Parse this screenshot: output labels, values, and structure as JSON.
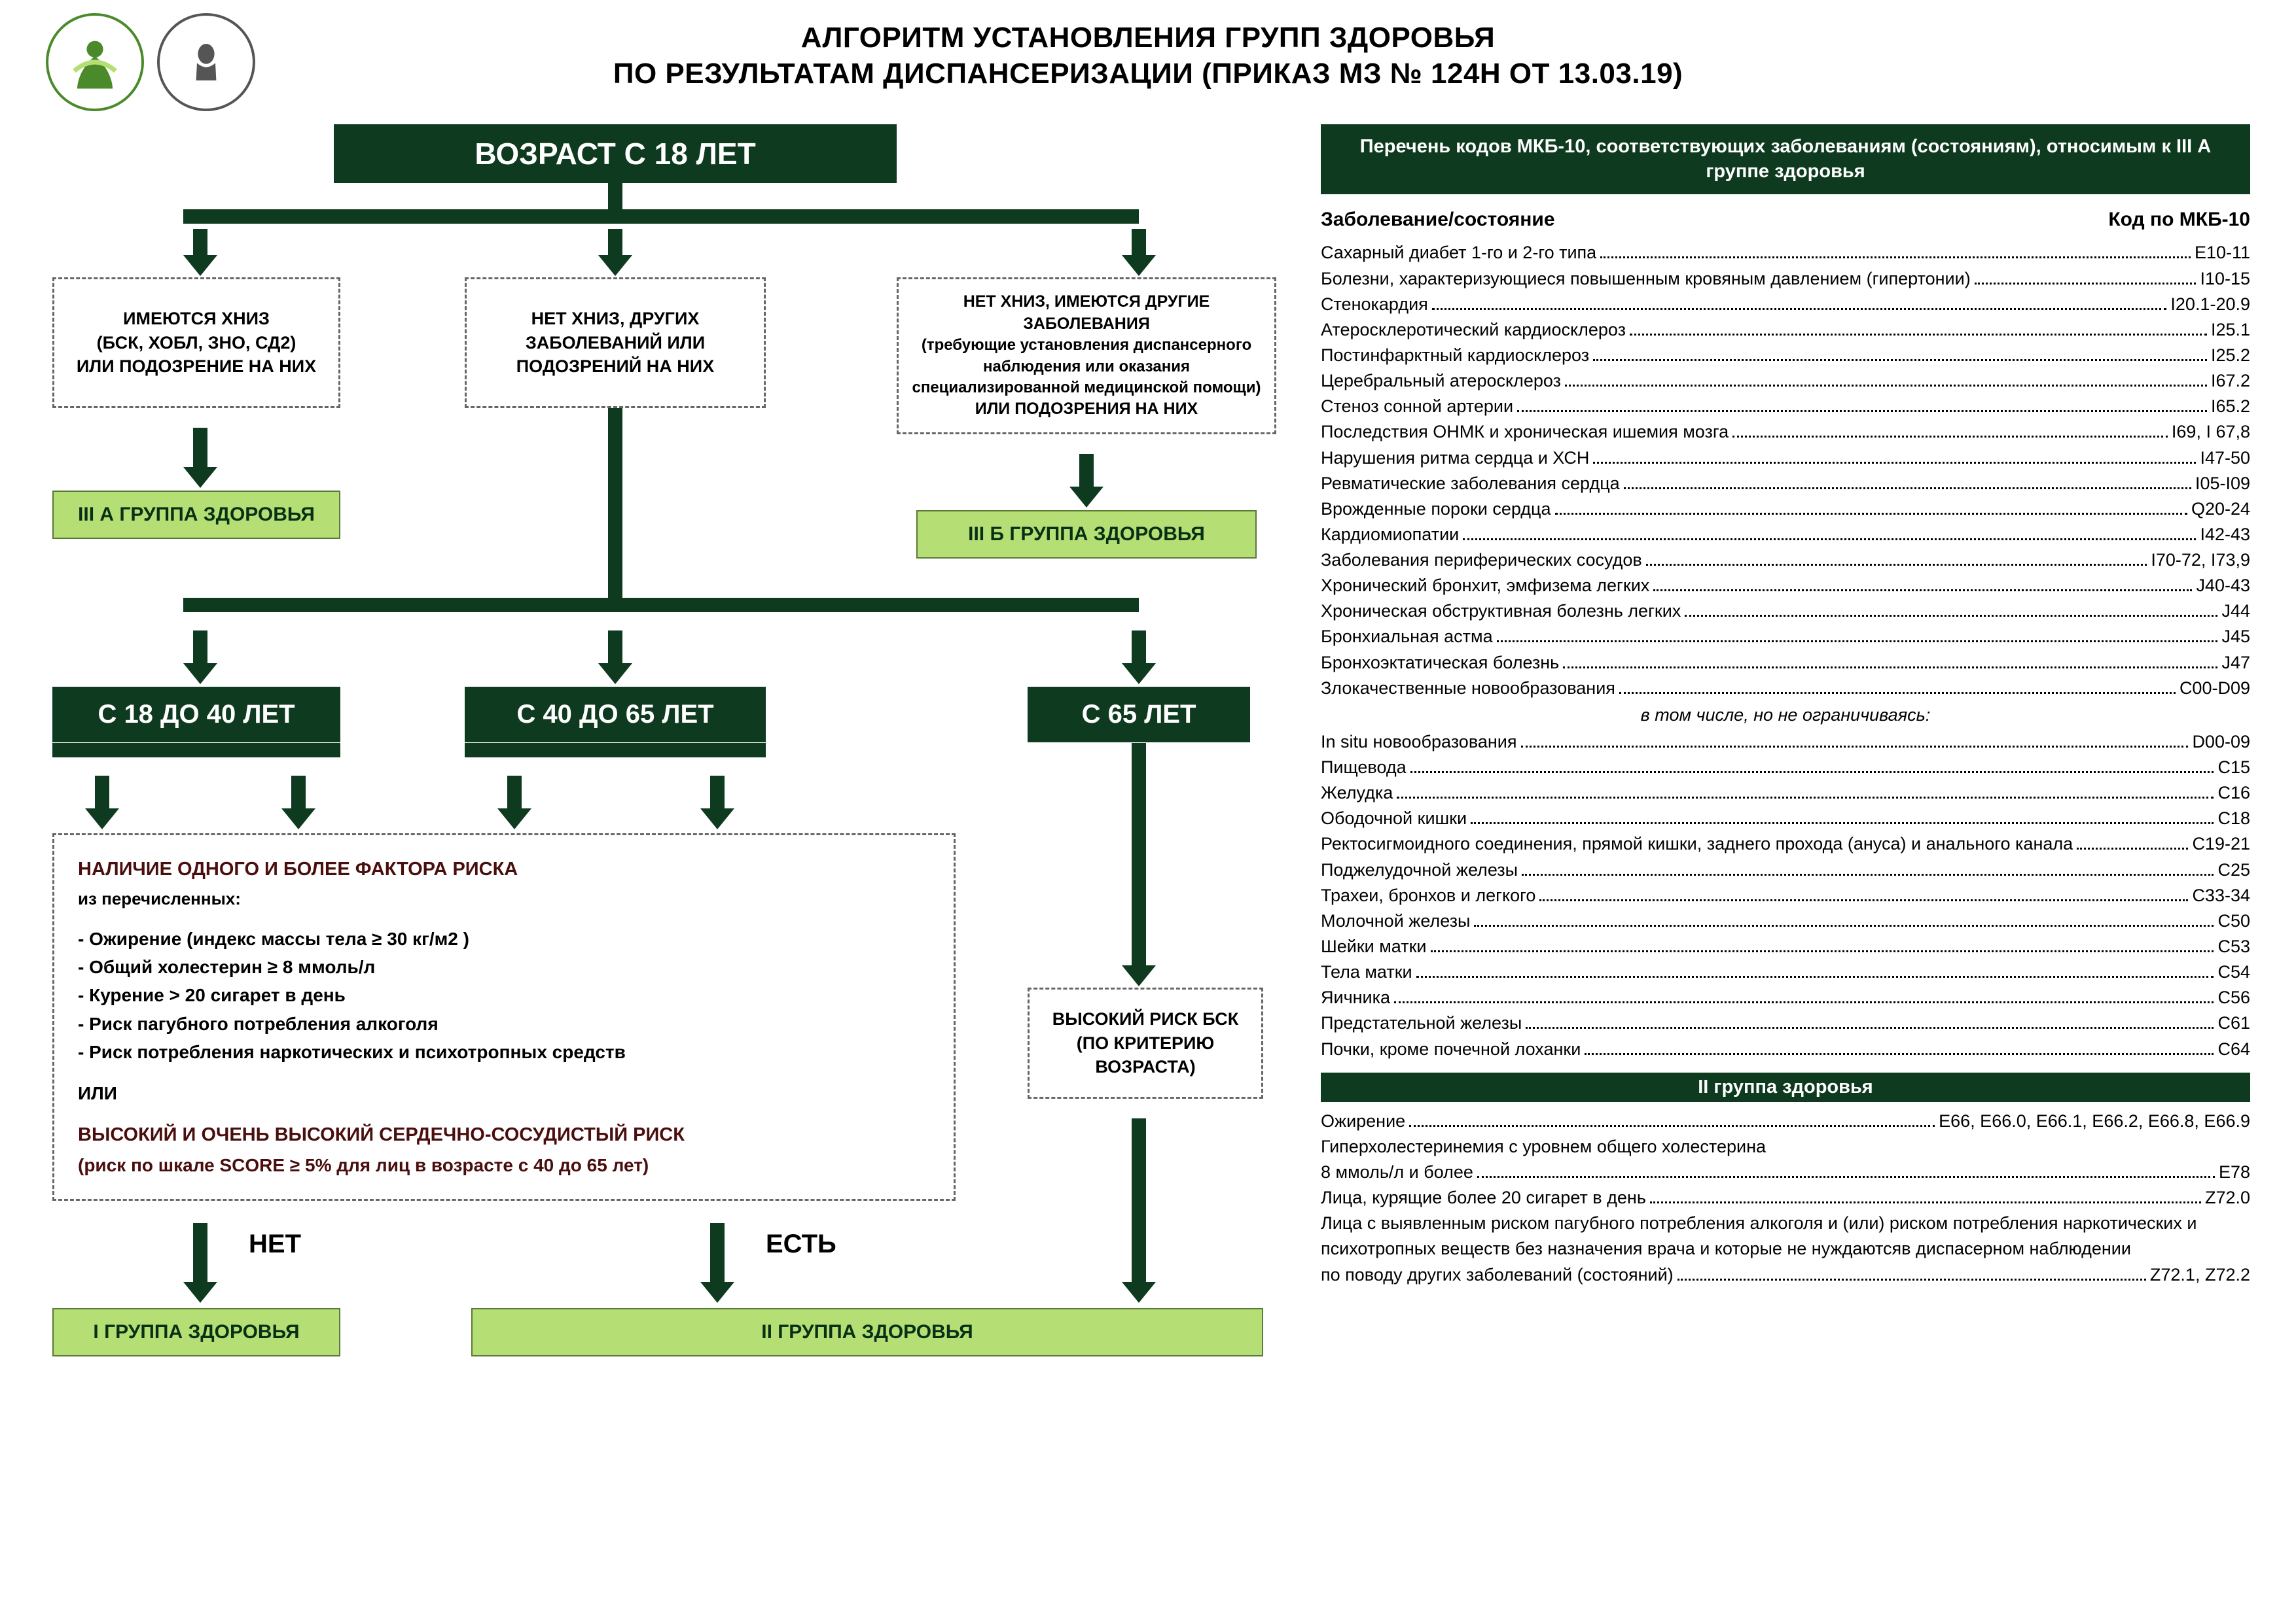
{
  "colors": {
    "dark_green": "#0e3a1f",
    "light_green": "#b5df74",
    "light_green_border": "#5a7a3a",
    "risk_text": "#4a0e0e",
    "dash_border": "#666666",
    "logo_green": "#4a8a2a",
    "background": "#ffffff",
    "text": "#000000"
  },
  "title_line1": "АЛГОРИТМ УСТАНОВЛЕНИЯ ГРУПП ЗДОРОВЬЯ",
  "title_line2": "ПО РЕЗУЛЬТАТАМ ДИСПАНСЕРИЗАЦИИ (ПРИКАЗ МЗ № 124Н ОТ 13.03.19)",
  "root_box": "ВОЗРАСТ С 18 ЛЕТ",
  "branch1": {
    "l1": "ИМЕЮТСЯ ХНИЗ",
    "l2": "(БСК, ХОБЛ, ЗНО, СД2)",
    "l3": "ИЛИ ПОДОЗРЕНИЕ НА НИХ"
  },
  "branch2": {
    "l1": "НЕТ ХНИЗ, ДРУГИХ",
    "l2": "ЗАБОЛЕВАНИЙ ИЛИ",
    "l3": "ПОДОЗРЕНИЙ НА НИХ"
  },
  "branch3": {
    "l1": "НЕТ ХНИЗ, ИМЕЮТСЯ ДРУГИЕ ЗАБОЛЕВАНИЯ",
    "l2": "(требующие установления диспансерного наблюдения или оказания специализированной медицинской помощи)",
    "l3": "ИЛИ ПОДОЗРЕНИЯ НА НИХ"
  },
  "group3a": "III А ГРУППА ЗДОРОВЬЯ",
  "group3b": "III Б ГРУППА ЗДОРОВЬЯ",
  "age1": "С 18 ДО 40 ЛЕТ",
  "age2": "С 40 ДО 65 ЛЕТ",
  "age3": "С 65 ЛЕТ",
  "risk": {
    "heading": "НАЛИЧИЕ ОДНОГО И БОЛЕЕ ФАКТОРА РИСКА",
    "sub": "из перечисленных:",
    "items": [
      "- Ожирение (индекс массы тела ≥ 30 кг/м2 )",
      "- Общий холестерин  ≥ 8 ммоль/л",
      "- Курение > 20 сигарет в день",
      "- Риск пагубного потребления алкоголя",
      "- Риск потребления наркотических и психотропных средств"
    ],
    "or": "ИЛИ",
    "heading2": "ВЫСОКИЙ И ОЧЕНЬ ВЫСОКИЙ СЕРДЕЧНО-СОСУДИСТЫЙ РИСК",
    "sub2": "(риск по шкале SCORE ≥ 5% для лиц в возрасте с 40 до 65 лет)"
  },
  "risk65": {
    "l1": "ВЫСОКИЙ РИСК БСК",
    "l2": "(ПО КРИТЕРИЮ",
    "l3": "ВОЗРАСТА)"
  },
  "no_label": "НЕТ",
  "yes_label": "ЕСТЬ",
  "group1": "I ГРУППА ЗДОРОВЬЯ",
  "group2": "II ГРУППА ЗДОРОВЬЯ",
  "side": {
    "header": "Перечень кодов МКБ-10, соответствующих заболеваниям (состояниям), относимым к III А группе здоровья",
    "col_left": "Заболевание/состояние",
    "col_right": "Код по МКБ-10",
    "rows": [
      {
        "name": "Сахарный диабет 1-го и 2-го типа",
        "code": "Е10-11"
      },
      {
        "name": "Болезни, характеризующиеся повышенным кровяным давлением (гипертонии)",
        "code": "I10-15"
      },
      {
        "name": "Стенокардия",
        "code": "I20.1-20.9"
      },
      {
        "name": "Атеросклеротический кардиосклероз",
        "code": "I25.1"
      },
      {
        "name": "Постинфарктный кардиосклероз",
        "code": "I25.2"
      },
      {
        "name": "Церебральный атеросклероз",
        "code": "I67.2"
      },
      {
        "name": "Стеноз сонной артерии",
        "code": "I65.2"
      },
      {
        "name": "Последствия ОНМК и хроническая ишемия мозга",
        "code": "I69, I 67,8"
      },
      {
        "name": "Нарушения ритма сердца и ХСН",
        "code": "I47-50"
      },
      {
        "name": "Ревматические заболевания сердца",
        "code": "I05-I09"
      },
      {
        "name": "Врожденные пороки сердца",
        "code": "Q20-24"
      },
      {
        "name": "Кардиомиопатии",
        "code": "I42-43"
      },
      {
        "name": "Заболевания периферических сосудов",
        "code": "I70-72, I73,9"
      },
      {
        "name": "Хронический бронхит, эмфизема легких",
        "code": "J40-43"
      },
      {
        "name": "Хроническая обструктивная болезнь легких",
        "code": "J44"
      },
      {
        "name": "Бронхиальная астма",
        "code": "J45"
      },
      {
        "name": "Бронхоэктатическая болезнь",
        "code": "J47"
      },
      {
        "name": "Злокачественные новообразования",
        "code": "С00-D09"
      }
    ],
    "note": "в том числе, но не ограничиваясь:",
    "rows2": [
      {
        "name": "In situ новообразования",
        "code": "D00-09"
      },
      {
        "name": "Пищевода",
        "code": "С15"
      },
      {
        "name": "Желудка",
        "code": "С16"
      },
      {
        "name": "Ободочной кишки",
        "code": "С18"
      },
      {
        "name": "Ректосигмоидного соединения, прямой кишки, заднего прохода (ануса) и анального канала",
        "code": "С19-21"
      },
      {
        "name": "Поджелудочной железы",
        "code": "С25"
      },
      {
        "name": "Трахеи, бронхов и легкого",
        "code": "С33-34"
      },
      {
        "name": "Молочной железы",
        "code": "С50"
      },
      {
        "name": "Шейки матки",
        "code": "С53"
      },
      {
        "name": "Тела матки",
        "code": "С54"
      },
      {
        "name": "Яичника",
        "code": "С56"
      },
      {
        "name": "Предстательной железы",
        "code": "С61"
      },
      {
        "name": "Почки, кроме почечной лоханки",
        "code": "С64"
      }
    ],
    "sep2": "II группа здоровья",
    "rows3": [
      {
        "name": "Ожирение",
        "code": "Е66, Е66.0, Е66.1, Е66.2, Е66.8, Е66.9"
      }
    ],
    "plain1": "Гиперхолестеринемия с уровнем общего холестерина",
    "rows4": [
      {
        "name": "8 ммоль/л и более",
        "code": "Е78"
      },
      {
        "name": "Лица, курящие более 20 сигарет в день",
        "code": "Z72.0"
      }
    ],
    "plain2": "Лица с выявленным риском пагубного потребления алкоголя и (или) риском потребления наркотических и психотропных веществ без назначения врача и которые не нуждаютсяв диспасерном наблюдении",
    "rows5": [
      {
        "name": "по поводу других заболеваний (состояний)",
        "code": "Z72.1, Z72.2"
      }
    ]
  }
}
